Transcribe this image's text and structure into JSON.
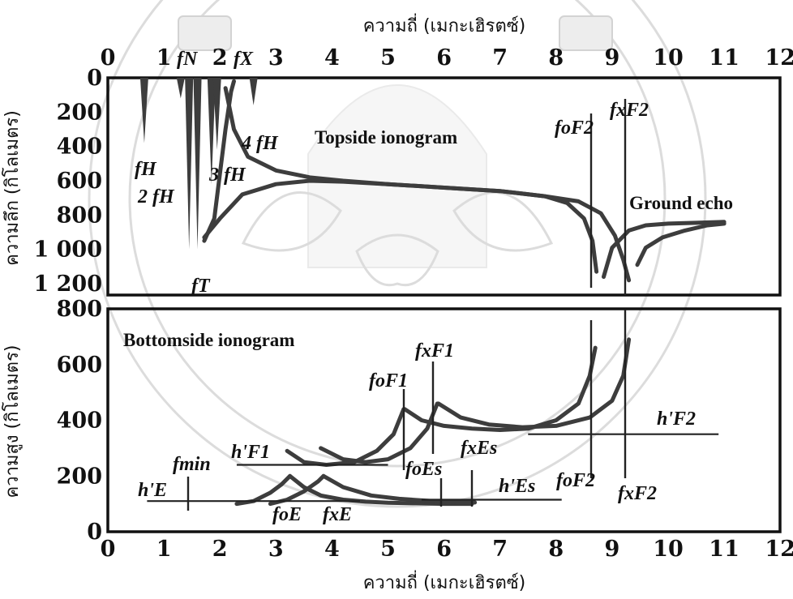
{
  "watermark": {
    "description_label": "university seal watermark"
  },
  "chart_data": [
    {
      "type": "line",
      "title": "Topside ionogram",
      "xlabel": "ความถี่ (เมกะเฮิรตซ์)",
      "ylabel": "ความลึก (กิโลเมตร)",
      "xlim": [
        0,
        12
      ],
      "ylim": [
        0,
        1200
      ],
      "y_inverted": true,
      "x_ticks": [
        "0",
        "1",
        "2",
        "3",
        "4",
        "5",
        "6",
        "7",
        "8",
        "9",
        "10",
        "11",
        "12"
      ],
      "y_ticks": [
        "0",
        "200",
        "400",
        "600",
        "800",
        "1 000",
        "1 200"
      ],
      "series": [
        {
          "x": [
            1.72,
            2.0,
            2.4,
            3.0,
            3.6,
            4.2,
            5.0,
            6.0,
            7.0,
            7.8,
            8.2,
            8.5,
            8.65,
            8.72
          ],
          "y": [
            930,
            820,
            680,
            620,
            600,
            605,
            620,
            640,
            660,
            690,
            730,
            820,
            950,
            1130
          ]
        },
        {
          "x": [
            2.1,
            2.25,
            2.5,
            3.0,
            3.6,
            4.2,
            5.0,
            6.0,
            7.0,
            7.8,
            8.4,
            8.8,
            9.05,
            9.2,
            9.3
          ],
          "y": [
            60,
            300,
            460,
            540,
            580,
            600,
            620,
            640,
            660,
            690,
            720,
            790,
            920,
            1060,
            1180
          ]
        },
        {
          "x": [
            1.72,
            1.9,
            2.1,
            2.2,
            2.25
          ],
          "y": [
            950,
            820,
            300,
            80,
            20
          ]
        },
        {
          "x": [
            8.85,
            9.0,
            9.3,
            9.6,
            10.0,
            10.5,
            11.0
          ],
          "y": [
            1160,
            990,
            890,
            860,
            850,
            845,
            840
          ]
        },
        {
          "x": [
            9.45,
            9.6,
            9.9,
            10.3,
            10.7,
            11.0
          ],
          "y": [
            1090,
            990,
            930,
            890,
            860,
            850
          ]
        }
      ],
      "spikes": [
        {
          "x": 0.65,
          "y": 380
        },
        {
          "x": 1.3,
          "y": 120
        },
        {
          "x": 1.45,
          "y": 1000
        },
        {
          "x": 1.6,
          "y": 1000
        },
        {
          "x": 1.85,
          "y": 620
        },
        {
          "x": 1.95,
          "y": 420
        },
        {
          "x": 2.6,
          "y": 160
        }
      ],
      "top_axis_labels": [
        "fN",
        "fX"
      ],
      "annotations": [
        "fH",
        "2 fH",
        "3 fH",
        "4 fH",
        "fT",
        "foF2",
        "fxF2",
        "Ground echo"
      ]
    },
    {
      "type": "line",
      "title": "Bottomside ionogram",
      "xlabel": "ความถี่ (เมกะเฮิรตซ์)",
      "ylabel": "ความสูง (กิโลเมตร)",
      "xlim": [
        0,
        12
      ],
      "ylim": [
        0,
        800
      ],
      "x_ticks": [
        "0",
        "1",
        "2",
        "3",
        "4",
        "5",
        "6",
        "7",
        "8",
        "9",
        "10",
        "11",
        "12"
      ],
      "y_ticks": [
        "0",
        "200",
        "400",
        "600",
        "800"
      ],
      "series": [
        {
          "x": [
            2.3,
            2.6,
            2.9,
            3.1,
            3.25
          ],
          "y": [
            100,
            110,
            140,
            170,
            200
          ]
        },
        {
          "x": [
            3.25,
            3.5,
            3.8,
            4.2,
            4.6,
            5.0,
            5.5,
            6.0,
            6.5
          ],
          "y": [
            200,
            160,
            130,
            115,
            108,
            104,
            102,
            100,
            100
          ]
        },
        {
          "x": [
            2.9,
            3.2,
            3.5,
            3.75,
            3.85
          ],
          "y": [
            100,
            115,
            145,
            180,
            200
          ]
        },
        {
          "x": [
            3.85,
            4.2,
            4.7,
            5.2,
            5.8,
            6.3,
            6.55
          ],
          "y": [
            200,
            160,
            130,
            118,
            110,
            106,
            105
          ]
        },
        {
          "x": [
            3.2,
            3.5,
            3.9,
            4.4,
            4.8,
            5.1,
            5.28
          ],
          "y": [
            290,
            250,
            240,
            250,
            290,
            350,
            440
          ]
        },
        {
          "x": [
            5.3,
            5.6,
            6.0,
            6.5,
            7.0,
            7.5,
            8.0,
            8.4,
            8.6,
            8.7
          ],
          "y": [
            440,
            400,
            380,
            370,
            365,
            370,
            400,
            460,
            560,
            660
          ]
        },
        {
          "x": [
            3.8,
            4.2,
            4.6,
            5.0,
            5.4,
            5.7,
            5.88
          ],
          "y": [
            300,
            260,
            250,
            260,
            300,
            370,
            460
          ]
        },
        {
          "x": [
            5.9,
            6.3,
            6.8,
            7.4,
            8.0,
            8.6,
            9.0,
            9.2,
            9.3
          ],
          "y": [
            460,
            410,
            385,
            375,
            380,
            410,
            470,
            560,
            690
          ]
        }
      ],
      "reference_lines": [
        {
          "label": "h'E",
          "y": 110,
          "x": [
            0.7,
            4.5
          ]
        },
        {
          "label": "h'F1",
          "y": 240,
          "x": [
            2.3,
            5.0
          ]
        },
        {
          "label": "h'F2",
          "y": 350,
          "x": [
            7.5,
            10.9
          ]
        },
        {
          "label": "h'Es",
          "y": 115,
          "x": [
            5.6,
            8.1
          ]
        }
      ],
      "annotations": [
        "fmin",
        "h'E",
        "h'F1",
        "foE",
        "fxE",
        "foF1",
        "fxF1",
        "foEs",
        "fxEs",
        "h'Es",
        "foF2",
        "fxF2",
        "h'F2"
      ]
    }
  ],
  "labels": {
    "top_axis_title": "ความถี่ (เมกะเฮิรตซ์)",
    "bottom_axis_title": "ความถี่ (เมกะเฮิรตซ์)",
    "top_y_title": "ความลึก (กิโลเมตร)",
    "bottom_y_title": "ความสูง (กิโลเมตร)",
    "top_title": "Topside ionogram",
    "bottom_title": "Bottomside ionogram",
    "ground_echo": "Ground echo",
    "fH": "fH",
    "f2H": "2 fH",
    "f3H": "3 fH",
    "f4H": "4 fH",
    "fN": "fN",
    "fX": "fX",
    "fT": "fT",
    "foF2_top": "foF2",
    "fxF2_top": "fxF2",
    "fmin": "fmin",
    "hE": "h'E",
    "hF1": "h'F1",
    "hF2": "h'F2",
    "hEs": "h'Es",
    "foE": "foE",
    "fxE": "fxE",
    "foF1": "foF1",
    "fxF1": "fxF1",
    "foEs": "foEs",
    "fxEs": "fxEs",
    "foF2_bot": "foF2",
    "fxF2_bot": "fxF2"
  }
}
